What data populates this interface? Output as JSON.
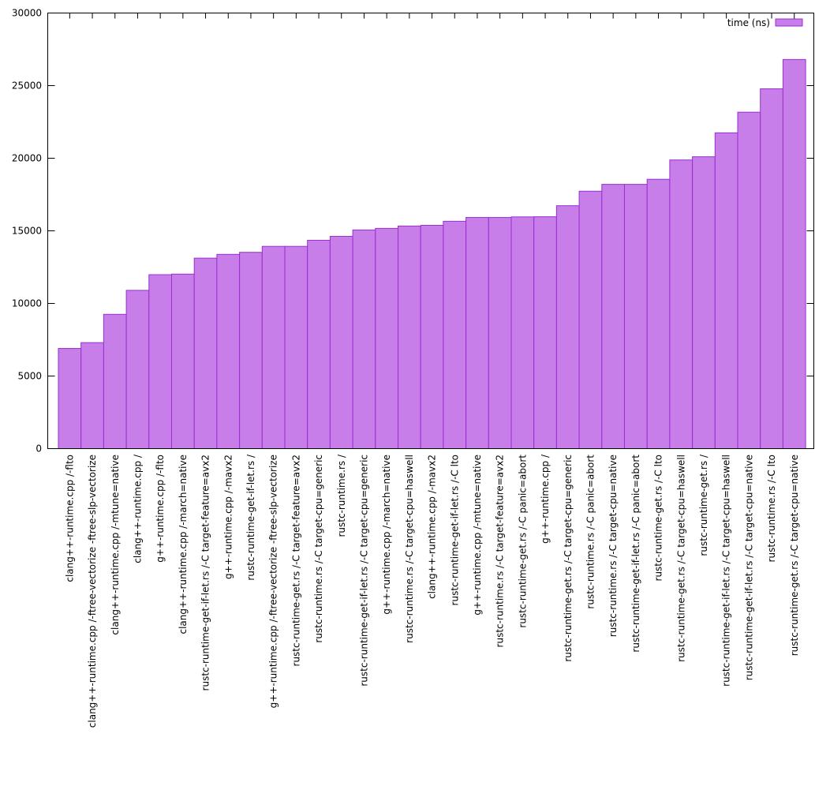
{
  "chart_data": {
    "type": "bar",
    "title": "",
    "xlabel": "",
    "ylabel": "",
    "ylim": [
      0,
      30000
    ],
    "yticks": [
      0,
      5000,
      10000,
      15000,
      20000,
      25000,
      30000
    ],
    "grid": false,
    "legend_position": "top-right",
    "colors": {
      "bar_fill": "#c77ee9",
      "bar_stroke": "#9a2fd0",
      "axis": "#000000"
    },
    "categories": [
      "clang++-runtime.cpp /-flto",
      "clang++-runtime.cpp /-ftree-vectorize -ftree-slp-vectorize",
      "clang++-runtime.cpp /-mtune=native",
      "clang++-runtime.cpp /",
      "g++-runtime.cpp /-flto",
      "clang++-runtime.cpp /-march=native",
      "rustc-runtime-get-if-let.rs /-C target-feature=avx2",
      "g++-runtime.cpp /-mavx2",
      "rustc-runtime-get-if-let.rs /",
      "g++-runtime.cpp /-ftree-vectorize -ftree-slp-vectorize",
      "rustc-runtime-get.rs /-C target-feature=avx2",
      "rustc-runtime.rs /-C target-cpu=generic",
      "rustc-runtime.rs /",
      "rustc-runtime-get-if-let.rs /-C target-cpu=generic",
      "g++-runtime.cpp /-march=native",
      "rustc-runtime.rs /-C target-cpu=haswell",
      "clang++-runtime.cpp /-mavx2",
      "rustc-runtime-get-if-let.rs /-C lto",
      "g++-runtime.cpp /-mtune=native",
      "rustc-runtime.rs /-C target-feature=avx2",
      "rustc-runtime-get.rs /-C panic=abort",
      "g++-runtime.cpp /",
      "rustc-runtime-get.rs /-C target-cpu=generic",
      "rustc-runtime.rs /-C panic=abort",
      "rustc-runtime.rs /-C target-cpu=native",
      "rustc-runtime-get-if-let.rs /-C panic=abort",
      "rustc-runtime-get.rs /-C lto",
      "rustc-runtime-get.rs /-C target-cpu=haswell",
      "rustc-runtime-get.rs /",
      "rustc-runtime-get-if-let.rs /-C target-cpu=haswell",
      "rustc-runtime-get-if-let.rs /-C target-cpu=native",
      "rustc-runtime.rs /-C lto",
      "rustc-runtime-get.rs /-C target-cpu=native"
    ],
    "series": [
      {
        "name": "time (ns)",
        "values": [
          6900,
          7300,
          9250,
          10900,
          11980,
          12020,
          13120,
          13380,
          13520,
          13930,
          13930,
          14350,
          14620,
          15060,
          15170,
          15330,
          15380,
          15660,
          15920,
          15920,
          15960,
          15970,
          16730,
          17730,
          18200,
          18200,
          18550,
          19880,
          20100,
          21750,
          23170,
          24780,
          26800
        ]
      }
    ]
  }
}
